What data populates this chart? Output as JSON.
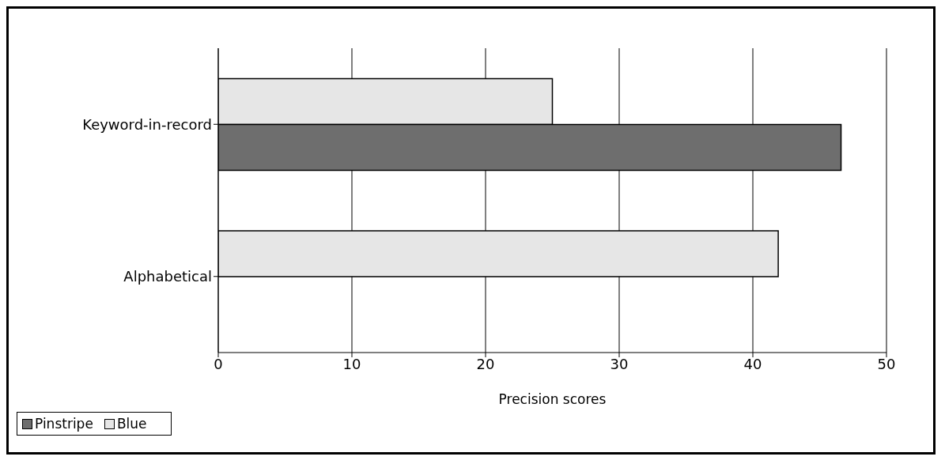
{
  "chart_data": {
    "type": "bar",
    "orientation": "horizontal",
    "xlabel": "Precision scores",
    "categories": [
      "Keyword-in-record",
      "Alphabetical"
    ],
    "series": [
      {
        "name": "Pinstripe",
        "color": "#6e6e6e",
        "values": [
          46.6,
          0
        ]
      },
      {
        "name": "Blue",
        "color": "#e6e6e6",
        "values": [
          25,
          41.9
        ]
      }
    ],
    "xlim": [
      0,
      50
    ],
    "xticks": [
      0,
      10,
      20,
      30,
      40,
      50
    ],
    "grid": "x",
    "legend": "bottom left"
  }
}
